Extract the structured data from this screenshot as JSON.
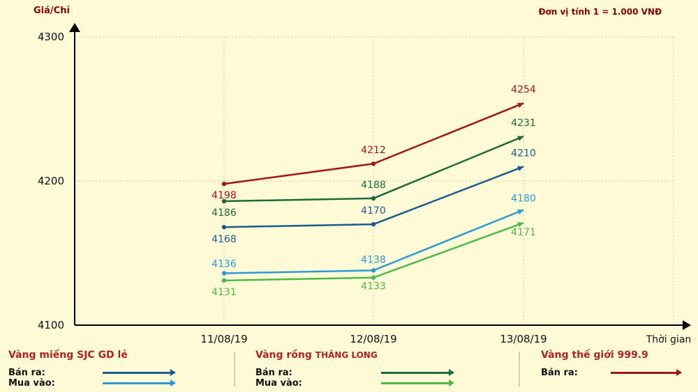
{
  "chart_data": {
    "type": "line",
    "ylabel": "Giá/Chỉ",
    "xlabel": "Thời gian",
    "unit_note": "Đơn vị tính 1 = 1.000 VNĐ",
    "categories": [
      "11/08/19",
      "12/08/19",
      "13/08/19"
    ],
    "ylim": [
      4100,
      4300
    ],
    "yticks": [
      4100,
      4200,
      4300
    ],
    "grid": true,
    "series": [
      {
        "group": "Vàng thế giới 999.9",
        "name": "Bán ra",
        "color": "#A01515",
        "values": [
          4198,
          4212,
          4254
        ]
      },
      {
        "group": "Vàng rồng THĂNG LONG",
        "name": "Bán ra",
        "color": "#1B6B3A",
        "values": [
          4186,
          4188,
          4231
        ]
      },
      {
        "group": "Vàng miếng SJC GD lẻ",
        "name": "Bán ra",
        "color": "#1A5C8E",
        "values": [
          4168,
          4170,
          4210
        ]
      },
      {
        "group": "Vàng miếng SJC GD lẻ",
        "name": "Mua vào",
        "color": "#2A9AD6",
        "values": [
          4136,
          4138,
          4180
        ]
      },
      {
        "group": "Vàng rồng THĂNG LONG",
        "name": "Mua vào",
        "color": "#4DB848",
        "values": [
          4131,
          4133,
          4171
        ]
      }
    ]
  },
  "legend": {
    "sjc": {
      "title": "Vàng miếng SJC GD lẻ",
      "sell": "Bán ra:",
      "buy": "Mua vào:",
      "sell_color": "#1A5C8E",
      "buy_color": "#2A9AD6"
    },
    "thanglong": {
      "title_prefix": "Vàng rồng ",
      "title_brand": "THĂNG LONG",
      "sell": "Bán ra:",
      "buy": "Mua vào:",
      "sell_color": "#1B6B3A",
      "buy_color": "#4DB848"
    },
    "world": {
      "title": "Vàng thế giới 999.9",
      "sell": "Bán ra:",
      "sell_color": "#A01515"
    }
  }
}
